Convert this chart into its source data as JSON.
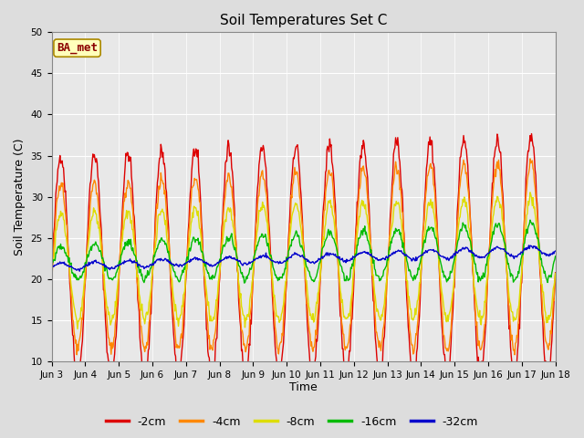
{
  "title": "Soil Temperatures Set C",
  "xlabel": "Time",
  "ylabel": "Soil Temperature (C)",
  "ylim": [
    10,
    50
  ],
  "yticks": [
    10,
    15,
    20,
    25,
    30,
    35,
    40,
    45,
    50
  ],
  "annotation": "BA_met",
  "series": [
    {
      "label": "-2cm",
      "color": "#dd0000",
      "lw": 1.0
    },
    {
      "label": "-4cm",
      "color": "#ff8800",
      "lw": 1.0
    },
    {
      "label": "-8cm",
      "color": "#dddd00",
      "lw": 1.0
    },
    {
      "label": "-16cm",
      "color": "#00bb00",
      "lw": 1.0
    },
    {
      "label": "-32cm",
      "color": "#0000cc",
      "lw": 1.0
    }
  ],
  "x_tick_labels": [
    "Jun 3",
    "Jun 4",
    "Jun 5",
    "Jun 6",
    "Jun 7",
    "Jun 8",
    "Jun 9",
    "Jun 10",
    "Jun 11",
    "Jun 12",
    "Jun 13",
    "Jun 14",
    "Jun 15",
    "Jun 16",
    "Jun 17",
    "Jun 18"
  ],
  "n_days": 15,
  "pts_per_day": 48,
  "figsize": [
    6.4,
    4.8
  ],
  "dpi": 100
}
